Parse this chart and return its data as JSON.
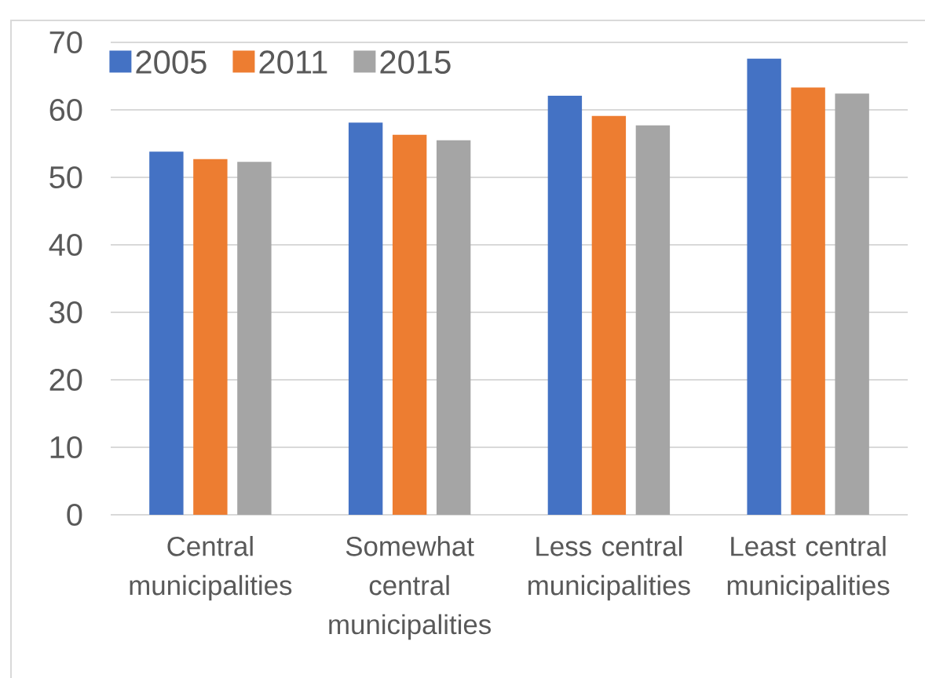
{
  "chart_data": {
    "type": "bar",
    "categories": [
      "Central municipalities",
      "Somewhat central municipalities",
      "Less central municipalities",
      "Least central municipalities"
    ],
    "series": [
      {
        "name": "2005",
        "color": "#4472c4",
        "values": [
          53.8,
          58.1,
          62.1,
          67.6
        ]
      },
      {
        "name": "2011",
        "color": "#ed7d31",
        "values": [
          52.7,
          56.3,
          59.1,
          63.3
        ]
      },
      {
        "name": "2015",
        "color": "#a5a5a5",
        "values": [
          52.3,
          55.5,
          57.7,
          62.4
        ]
      }
    ],
    "ylim": [
      0,
      70
    ],
    "yticks": [
      0,
      10,
      20,
      30,
      40,
      50,
      60,
      70
    ],
    "grid": "y",
    "legend": "top left"
  }
}
